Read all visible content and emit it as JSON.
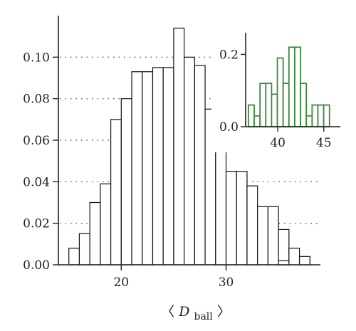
{
  "chart_data": [
    {
      "type": "bar",
      "role": "main-histogram",
      "xlabel_main": "D",
      "xlabel_sub": "ball",
      "xlabel_open": "〈",
      "xlabel_close": "〉",
      "xlim": [
        14,
        39
      ],
      "ylim": [
        0,
        0.12
      ],
      "bin_width": 1,
      "xticks": [
        20,
        30
      ],
      "xtick_labels": [
        "20",
        "30"
      ],
      "yticks": [
        0.0,
        0.02,
        0.04,
        0.06,
        0.08,
        0.1
      ],
      "ytick_labels": [
        "0.00",
        "0.02",
        "0.04",
        "0.06",
        "0.08",
        "0.10"
      ],
      "grid": "horizontal dotted",
      "bins": [
        {
          "x0": 15,
          "value": 0.008
        },
        {
          "x0": 16,
          "value": 0.015
        },
        {
          "x0": 17,
          "value": 0.03
        },
        {
          "x0": 18,
          "value": 0.039
        },
        {
          "x0": 19,
          "value": 0.07
        },
        {
          "x0": 20,
          "value": 0.08
        },
        {
          "x0": 21,
          "value": 0.093
        },
        {
          "x0": 22,
          "value": 0.093
        },
        {
          "x0": 23,
          "value": 0.095
        },
        {
          "x0": 24,
          "value": 0.095
        },
        {
          "x0": 25,
          "value": 0.114
        },
        {
          "x0": 26,
          "value": 0.1
        },
        {
          "x0": 27,
          "value": 0.096
        },
        {
          "x0": 28,
          "value": 0.075
        },
        {
          "x0": 29,
          "value": 0.067
        },
        {
          "x0": 30,
          "value": 0.045
        },
        {
          "x0": 31,
          "value": 0.045
        },
        {
          "x0": 32,
          "value": 0.038
        },
        {
          "x0": 33,
          "value": 0.028
        },
        {
          "x0": 34,
          "value": 0.028
        },
        {
          "x0": 35,
          "value": 0.017
        },
        {
          "x0": 36,
          "value": 0.008
        },
        {
          "x0": 37,
          "value": 0.003
        },
        {
          "x0": 38,
          "value": 0.0
        },
        {
          "x0": 35,
          "value": 0.002,
          "isolated": true
        },
        {
          "x0": 37,
          "value": 0.004,
          "isolated": true
        }
      ]
    },
    {
      "type": "bar",
      "role": "inset-histogram",
      "xlim": [
        36.5,
        46.8
      ],
      "ylim": [
        0,
        0.26
      ],
      "bin_width": 0.63,
      "xticks": [
        40,
        45
      ],
      "xtick_labels": [
        "40",
        "45"
      ],
      "yticks": [
        0.0,
        0.2
      ],
      "ytick_labels": [
        "0.0",
        "0.2"
      ],
      "color": "#3c8a3c",
      "bins": [
        {
          "x0": 36.8,
          "value": 0.06
        },
        {
          "x0": 37.43,
          "value": 0.03
        },
        {
          "x0": 38.06,
          "value": 0.12
        },
        {
          "x0": 38.69,
          "value": 0.12
        },
        {
          "x0": 39.32,
          "value": 0.09
        },
        {
          "x0": 39.95,
          "value": 0.19
        },
        {
          "x0": 40.58,
          "value": 0.12
        },
        {
          "x0": 41.21,
          "value": 0.22
        },
        {
          "x0": 41.84,
          "value": 0.22
        },
        {
          "x0": 42.47,
          "value": 0.12
        },
        {
          "x0": 43.1,
          "value": 0.03
        },
        {
          "x0": 43.73,
          "value": 0.06
        },
        {
          "x0": 44.36,
          "value": 0.06
        },
        {
          "x0": 44.99,
          "value": 0.06
        }
      ]
    }
  ]
}
